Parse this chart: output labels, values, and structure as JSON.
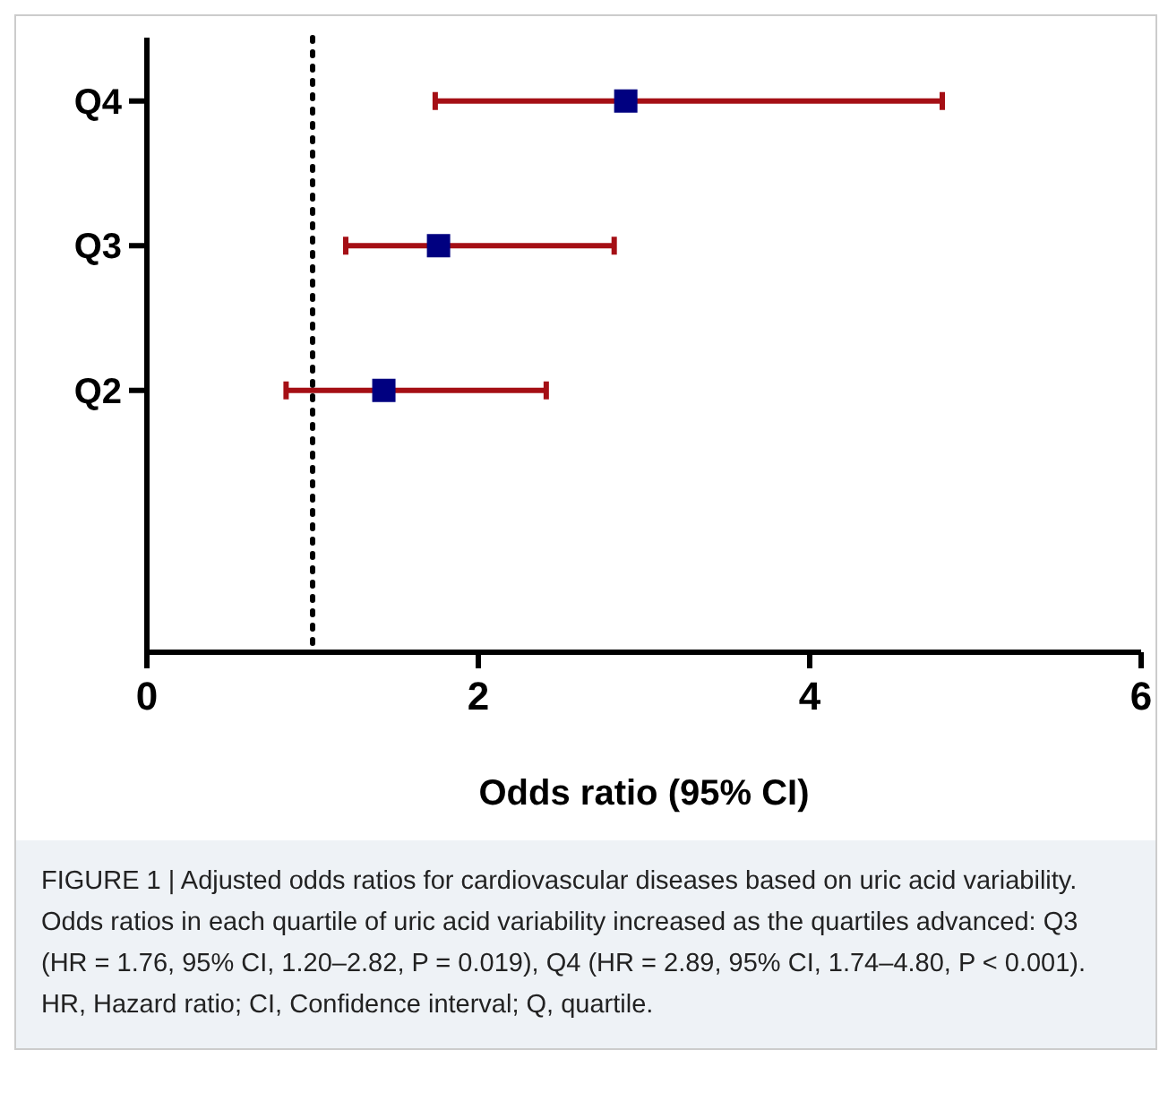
{
  "chart_data": {
    "type": "scatter",
    "orientation": "horizontal",
    "xlabel": "Odds ratio (95% CI)",
    "categories": [
      "Q4",
      "Q3",
      "Q2",
      null
    ],
    "series": [
      {
        "color": "#a50f15",
        "colors": [
          "#000080",
          "#000080",
          "#000080",
          null
        ],
        "values": [
          2.89,
          1.76,
          1.43,
          null
        ],
        "errors": [
          [
            1.74,
            4.8
          ],
          [
            1.2,
            2.82
          ],
          [
            0.84,
            2.41
          ],
          null
        ]
      }
    ],
    "marker": "square",
    "xlim": [
      0,
      6
    ],
    "xticks": [
      0,
      2,
      4,
      6
    ],
    "grid": false,
    "ref_lines": [
      {
        "axis": "x",
        "value": 1,
        "line_style": "dotted",
        "color": "#000000"
      }
    ],
    "annotations": [
      "FIGURE 1 | Adjusted odds ratios for cardiovascular diseases based on uric acid variability. Odds ratios in each quartile of uric acid variability increased as the quartiles advanced: Q3 (HR = 1.76, 95% CI, 1.20–2.82, P = 0.019), Q4 (HR = 2.89, 95% CI, 1.74–4.80, P < 0.001). HR, Hazard ratio; CI, Confidence interval; Q, quartile."
    ]
  }
}
